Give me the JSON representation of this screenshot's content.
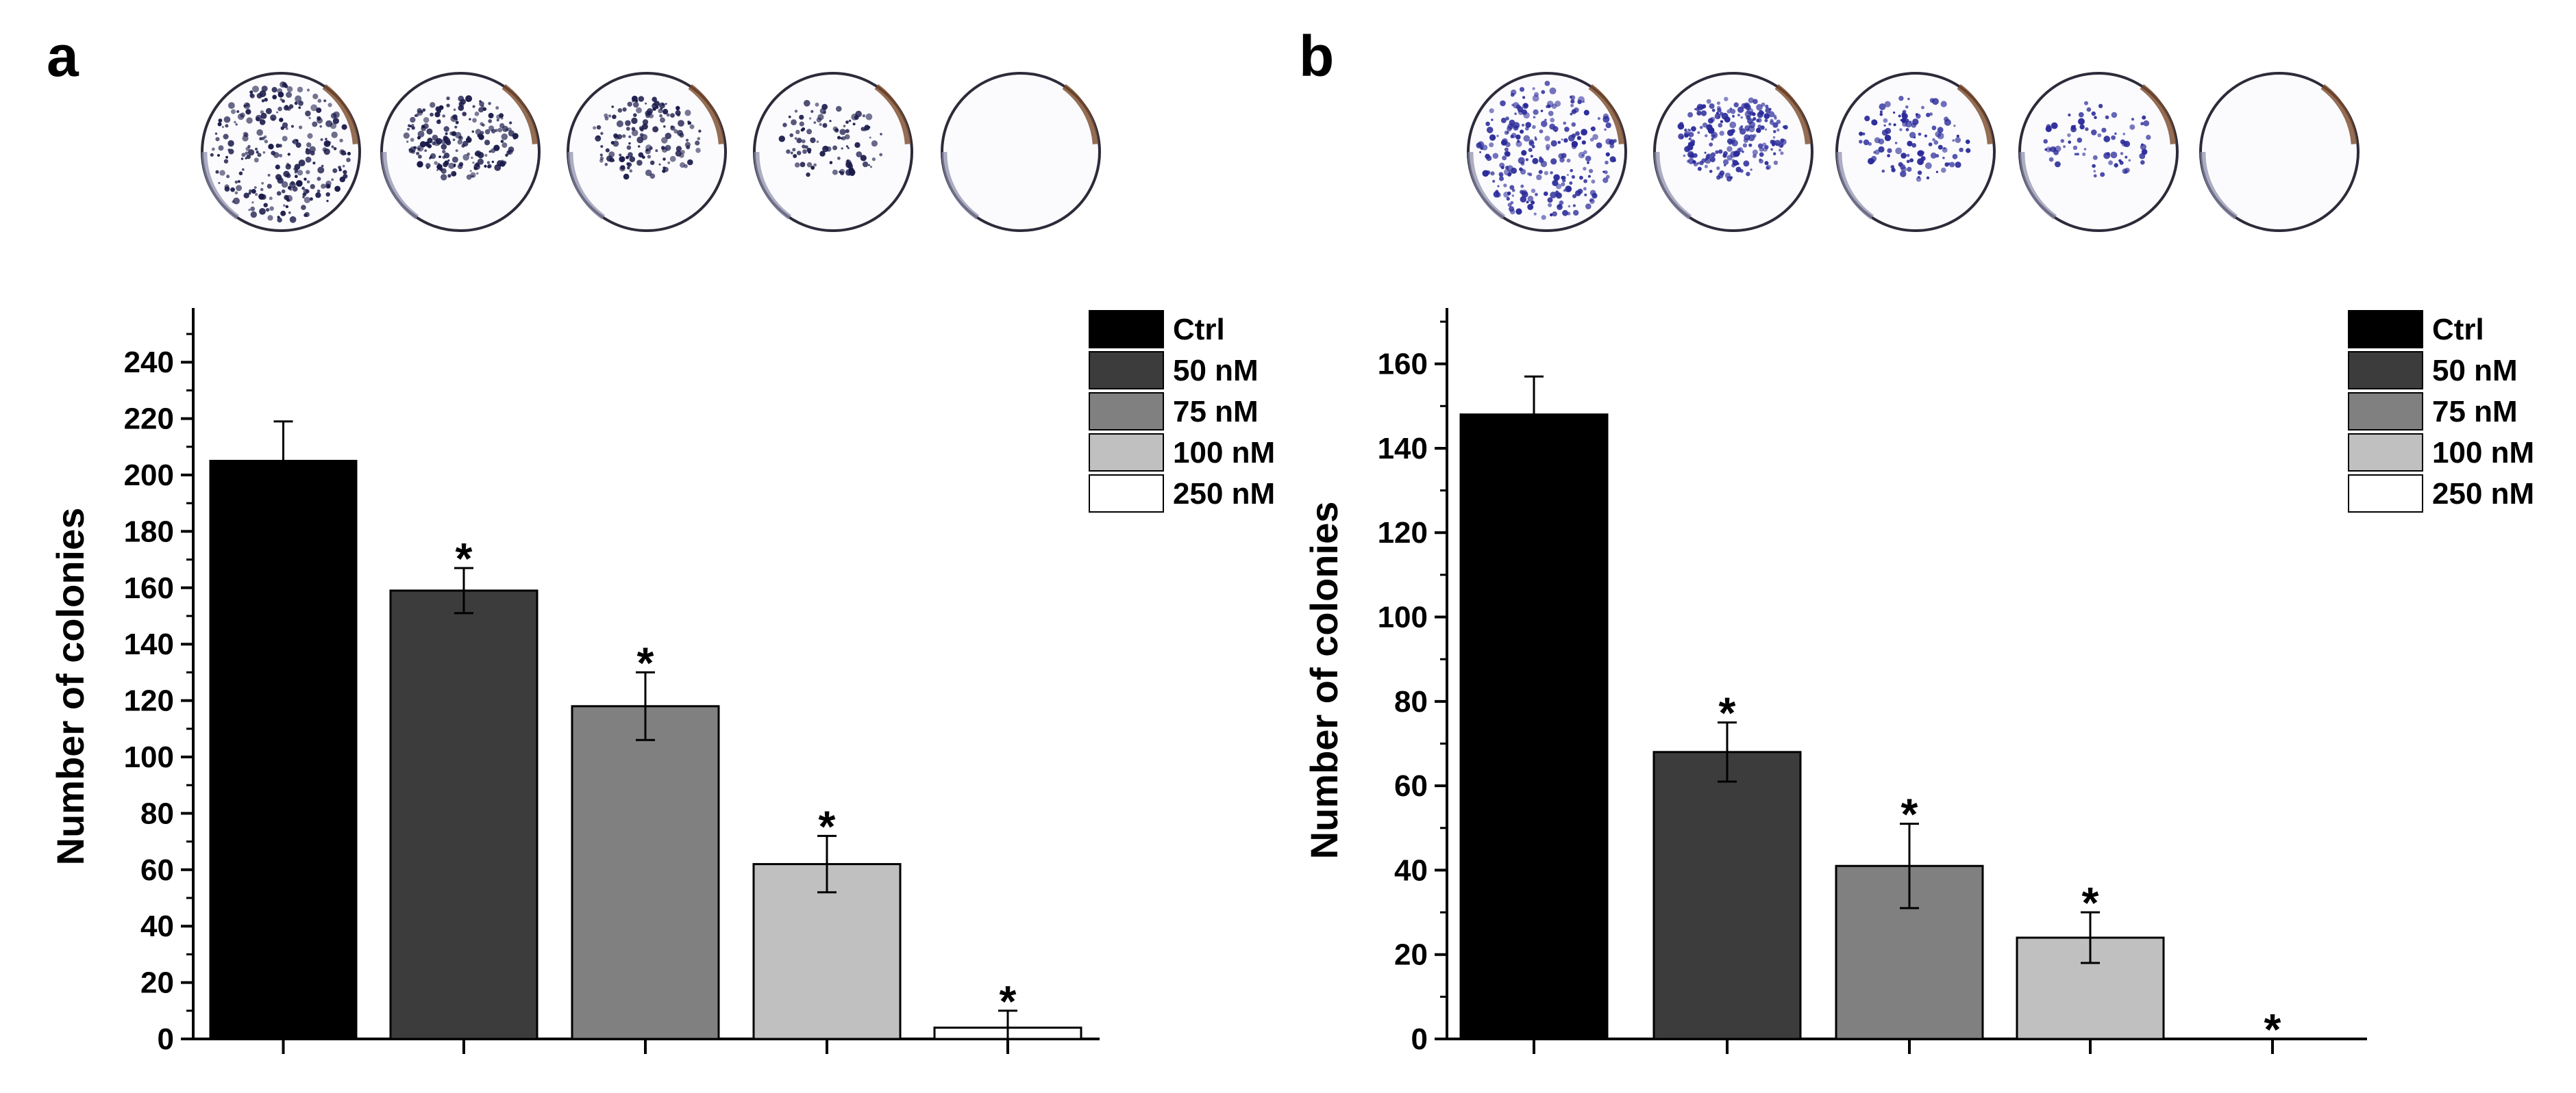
{
  "panels": [
    {
      "letter": "a",
      "dish_intensity": [
        1.0,
        0.75,
        0.55,
        0.4,
        0.0
      ],
      "dish_color": "#1a1a4a"
    },
    {
      "letter": "b",
      "dish_intensity": [
        1.0,
        0.8,
        0.45,
        0.3,
        0.0
      ],
      "dish_color": "#2a2a9a"
    }
  ],
  "chart_data": [
    {
      "type": "bar",
      "ylabel": "Number of colonies",
      "xlabel": "",
      "ylim": [
        0,
        250
      ],
      "yticks": [
        0,
        20,
        40,
        60,
        80,
        100,
        120,
        140,
        160,
        180,
        200,
        220,
        240
      ],
      "series": [
        {
          "name": "Ctrl",
          "value": 205,
          "error": 14,
          "significant": false,
          "color": "#000000"
        },
        {
          "name": "50 nM",
          "value": 159,
          "error": 8,
          "significant": true,
          "color": "#3c3c3c"
        },
        {
          "name": "75 nM",
          "value": 118,
          "error": 12,
          "significant": true,
          "color": "#808080"
        },
        {
          "name": "100 nM",
          "value": 62,
          "error": 10,
          "significant": true,
          "color": "#c0c0c0"
        },
        {
          "name": "250 nM",
          "value": 4,
          "error": 6,
          "significant": true,
          "color": "#ffffff"
        }
      ],
      "significance_marker": "*",
      "legend_position": "top-right",
      "grid": false
    },
    {
      "type": "bar",
      "ylabel": "Number of colonies",
      "xlabel": "",
      "ylim": [
        0,
        170
      ],
      "yticks": [
        0,
        20,
        40,
        60,
        80,
        100,
        120,
        140,
        160
      ],
      "series": [
        {
          "name": "Ctrl",
          "value": 148,
          "error": 9,
          "significant": false,
          "color": "#000000"
        },
        {
          "name": "50 nM",
          "value": 68,
          "error": 7,
          "significant": true,
          "color": "#3c3c3c"
        },
        {
          "name": "75 nM",
          "value": 41,
          "error": 10,
          "significant": true,
          "color": "#808080"
        },
        {
          "name": "100 nM",
          "value": 24,
          "error": 6,
          "significant": true,
          "color": "#c0c0c0"
        },
        {
          "name": "250 nM",
          "value": 0,
          "error": 0,
          "significant": true,
          "color": "#ffffff"
        }
      ],
      "significance_marker": "*",
      "legend_position": "top-right",
      "grid": false
    }
  ]
}
